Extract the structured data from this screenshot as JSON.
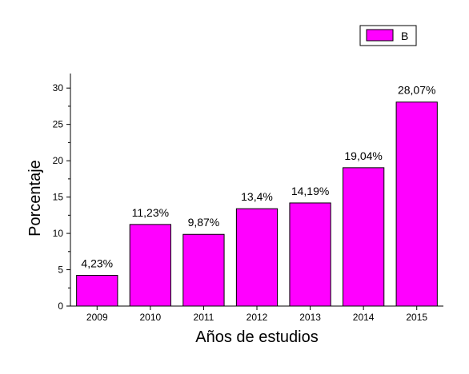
{
  "chart_data": {
    "type": "bar",
    "categories": [
      "2009",
      "2010",
      "2011",
      "2012",
      "2013",
      "2014",
      "2015"
    ],
    "values": [
      4.23,
      11.23,
      9.87,
      13.4,
      14.19,
      19.04,
      28.07
    ],
    "data_labels": [
      "4,23%",
      "11,23%",
      "9,87%",
      "13,4%",
      "14,19%",
      "19,04%",
      "28,07%"
    ],
    "xlabel": "Años de estudios",
    "ylabel": "Porcentaje",
    "ylim": [
      0,
      32
    ],
    "yticks": [
      0,
      5,
      10,
      15,
      20,
      25,
      30
    ],
    "grid": false,
    "legend": {
      "position": "top-right",
      "entries": [
        "B"
      ]
    },
    "series": [
      {
        "name": "B",
        "values": [
          4.23,
          11.23,
          9.87,
          13.4,
          14.19,
          19.04,
          28.07
        ]
      }
    ],
    "colors": {
      "bar_fill": "#ff00ff",
      "bar_stroke": "#000000",
      "axis": "#000000"
    }
  }
}
